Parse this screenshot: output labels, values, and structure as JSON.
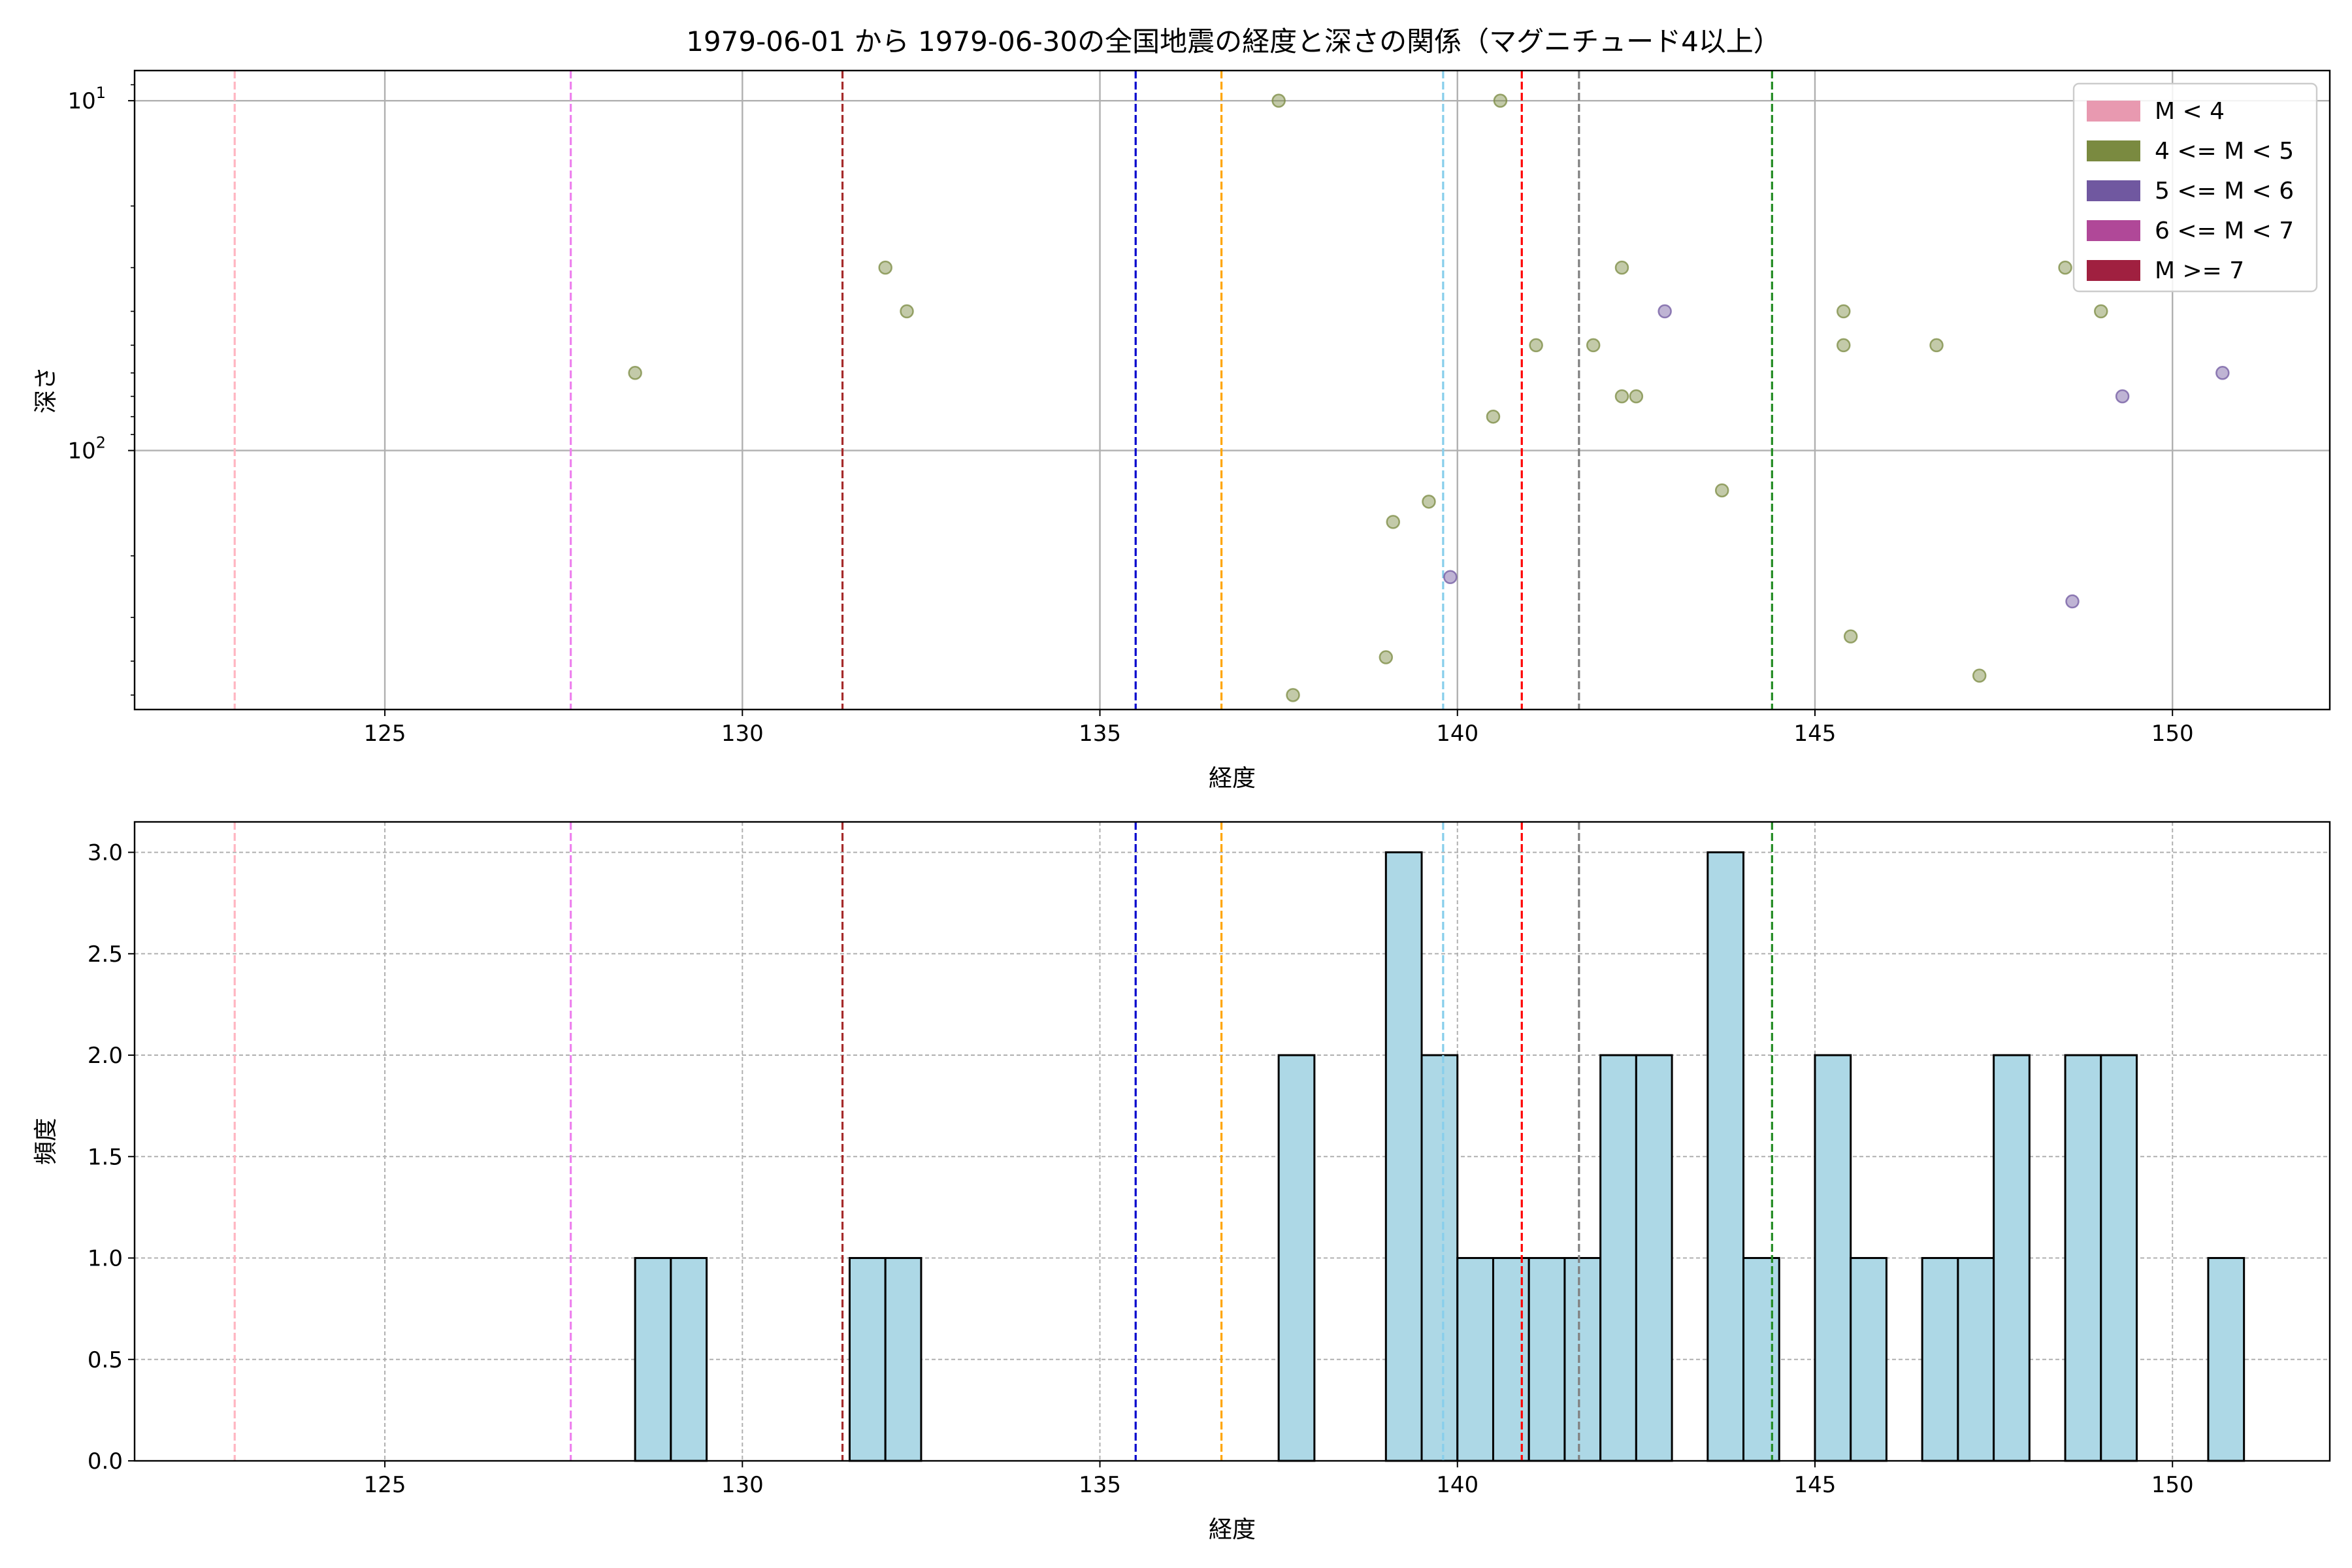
{
  "chart_data": [
    {
      "type": "scatter",
      "title": "1979-06-01 から 1979-06-30の全国地震の経度と深さの関係（マグニチュード4以上）",
      "xlabel": "経度",
      "ylabel": "深さ",
      "xlim": [
        121.5,
        152.2
      ],
      "ylim": [
        550,
        8.2
      ],
      "yscale": "log",
      "y_inverted": true,
      "x_ticks": [
        125,
        130,
        135,
        140,
        145,
        150
      ],
      "x_tick_labels": [
        "125",
        "130",
        "135",
        "140",
        "145",
        "150"
      ],
      "y_ticks": [
        10,
        100
      ],
      "y_tick_labels": [
        {
          "base": "10",
          "exp": "1"
        },
        {
          "base": "10",
          "exp": "2"
        }
      ],
      "grid": true,
      "legend": {
        "position": "top-right",
        "entries": [
          {
            "label": "M < 4",
            "color": "#e899b0"
          },
          {
            "label": "4 <= M < 5",
            "color": "#7a8a40"
          },
          {
            "label": "5 <= M < 6",
            "color": "#7058a0"
          },
          {
            "label": "6 <= M < 7",
            "color": "#b04898"
          },
          {
            "label": "M >= 7",
            "color": "#a02040"
          }
        ]
      },
      "series": [
        {
          "name": "4 <= M < 5",
          "color": "#7a8a40",
          "points": [
            {
              "x": 128.5,
              "y": 60
            },
            {
              "x": 132.0,
              "y": 30
            },
            {
              "x": 132.3,
              "y": 40
            },
            {
              "x": 137.5,
              "y": 10
            },
            {
              "x": 137.7,
              "y": 500
            },
            {
              "x": 139.0,
              "y": 390
            },
            {
              "x": 139.1,
              "y": 160
            },
            {
              "x": 139.6,
              "y": 140
            },
            {
              "x": 140.5,
              "y": 80
            },
            {
              "x": 140.6,
              "y": 10
            },
            {
              "x": 141.1,
              "y": 50
            },
            {
              "x": 141.9,
              "y": 50
            },
            {
              "x": 142.3,
              "y": 30
            },
            {
              "x": 142.3,
              "y": 70
            },
            {
              "x": 142.5,
              "y": 70
            },
            {
              "x": 143.7,
              "y": 130
            },
            {
              "x": 145.4,
              "y": 40
            },
            {
              "x": 145.4,
              "y": 50
            },
            {
              "x": 145.5,
              "y": 340
            },
            {
              "x": 146.7,
              "y": 50
            },
            {
              "x": 147.3,
              "y": 440
            },
            {
              "x": 148.5,
              "y": 30
            },
            {
              "x": 149.0,
              "y": 40
            }
          ]
        },
        {
          "name": "5 <= M < 6",
          "color": "#7058a0",
          "points": [
            {
              "x": 139.9,
              "y": 230
            },
            {
              "x": 142.9,
              "y": 40
            },
            {
              "x": 148.6,
              "y": 270
            },
            {
              "x": 149.3,
              "y": 70
            },
            {
              "x": 150.7,
              "y": 60
            }
          ]
        }
      ],
      "vlines": [
        {
          "x": 122.9,
          "color": "#ffb6c1"
        },
        {
          "x": 127.6,
          "color": "#ee82ee"
        },
        {
          "x": 131.4,
          "color": "#a52a2a"
        },
        {
          "x": 135.5,
          "color": "#0000cd"
        },
        {
          "x": 136.7,
          "color": "#ffa500"
        },
        {
          "x": 139.8,
          "color": "#87ceeb"
        },
        {
          "x": 140.9,
          "color": "#ff0000"
        },
        {
          "x": 141.7,
          "color": "#808080"
        },
        {
          "x": 144.4,
          "color": "#228b22"
        }
      ]
    },
    {
      "type": "bar",
      "title": "",
      "xlabel": "経度",
      "ylabel": "頻度",
      "xlim": [
        121.5,
        152.2
      ],
      "ylim": [
        0,
        3.15
      ],
      "x_ticks": [
        125,
        130,
        135,
        140,
        145,
        150
      ],
      "x_tick_labels": [
        "125",
        "130",
        "135",
        "140",
        "145",
        "150"
      ],
      "y_ticks": [
        0.0,
        0.5,
        1.0,
        1.5,
        2.0,
        2.5,
        3.0
      ],
      "y_tick_labels": [
        "0.0",
        "0.5",
        "1.0",
        "1.5",
        "2.0",
        "2.5",
        "3.0"
      ],
      "grid": true,
      "bar_color": "#add8e6",
      "bar_edge_color": "#000000",
      "bins": [
        {
          "x0": 128.5,
          "x1": 129.0,
          "count": 1
        },
        {
          "x0": 129.0,
          "x1": 129.5,
          "count": 1
        },
        {
          "x0": 131.5,
          "x1": 132.0,
          "count": 1
        },
        {
          "x0": 132.0,
          "x1": 132.5,
          "count": 1
        },
        {
          "x0": 137.5,
          "x1": 138.0,
          "count": 2
        },
        {
          "x0": 139.0,
          "x1": 139.5,
          "count": 3
        },
        {
          "x0": 139.5,
          "x1": 140.0,
          "count": 2
        },
        {
          "x0": 140.0,
          "x1": 140.5,
          "count": 1
        },
        {
          "x0": 140.5,
          "x1": 141.0,
          "count": 1
        },
        {
          "x0": 141.0,
          "x1": 141.5,
          "count": 1
        },
        {
          "x0": 141.5,
          "x1": 142.0,
          "count": 1
        },
        {
          "x0": 142.0,
          "x1": 142.5,
          "count": 2
        },
        {
          "x0": 142.5,
          "x1": 143.0,
          "count": 2
        },
        {
          "x0": 143.5,
          "x1": 144.0,
          "count": 3
        },
        {
          "x0": 144.0,
          "x1": 144.5,
          "count": 1
        },
        {
          "x0": 145.0,
          "x1": 145.5,
          "count": 2
        },
        {
          "x0": 145.5,
          "x1": 146.0,
          "count": 1
        },
        {
          "x0": 146.5,
          "x1": 147.0,
          "count": 1
        },
        {
          "x0": 147.0,
          "x1": 147.5,
          "count": 1
        },
        {
          "x0": 147.5,
          "x1": 148.0,
          "count": 2
        },
        {
          "x0": 148.5,
          "x1": 149.0,
          "count": 2
        },
        {
          "x0": 149.0,
          "x1": 149.5,
          "count": 2
        },
        {
          "x0": 150.5,
          "x1": 151.0,
          "count": 1
        }
      ],
      "vlines": [
        {
          "x": 122.9,
          "color": "#ffb6c1"
        },
        {
          "x": 127.6,
          "color": "#ee82ee"
        },
        {
          "x": 131.4,
          "color": "#a52a2a"
        },
        {
          "x": 135.5,
          "color": "#0000cd"
        },
        {
          "x": 136.7,
          "color": "#ffa500"
        },
        {
          "x": 139.8,
          "color": "#87ceeb"
        },
        {
          "x": 140.9,
          "color": "#ff0000"
        },
        {
          "x": 141.7,
          "color": "#808080"
        },
        {
          "x": 144.4,
          "color": "#228b22"
        }
      ]
    }
  ]
}
